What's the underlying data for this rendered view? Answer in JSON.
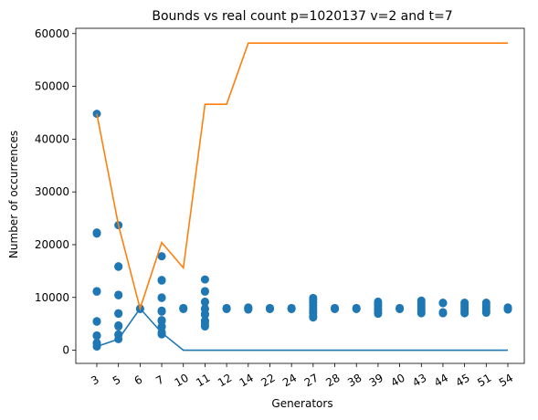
{
  "chart_data": {
    "type": "scatter",
    "title": "Bounds vs real count p=1020137 v=2 and t=7",
    "xlabel": "Generators",
    "ylabel": "Number of occurrences",
    "categories": [
      "3",
      "5",
      "6",
      "7",
      "10",
      "11",
      "12",
      "14",
      "22",
      "24",
      "27",
      "28",
      "38",
      "39",
      "40",
      "43",
      "44",
      "45",
      "51",
      "54"
    ],
    "ylim": [
      -2500,
      61000
    ],
    "yticks": [
      0,
      10000,
      20000,
      30000,
      40000,
      50000,
      60000
    ],
    "grid": false,
    "colors": {
      "scatter": "#1f77b4",
      "lower": "#1f77b4",
      "upper": "#ff7f0e"
    },
    "series": [
      {
        "kind": "scatter",
        "points": {
          "3": [
            44800,
            22300,
            22100,
            11200,
            11100,
            5500,
            5400,
            2800,
            2700,
            1400,
            1300,
            700
          ],
          "5": [
            23700,
            15900,
            15800,
            10500,
            10400,
            7000,
            6900,
            4700,
            4500,
            3000,
            2900,
            2100
          ],
          "6": [
            7900,
            7800
          ],
          "7": [
            17800,
            13300,
            13200,
            10000,
            9900,
            7500,
            7300,
            5700,
            5500,
            4500,
            4400,
            3400,
            3300,
            3000
          ],
          "10": [
            8000,
            7900,
            7800
          ],
          "11": [
            13400,
            11200,
            11100,
            9200,
            9100,
            7900,
            7800,
            6900,
            6700,
            5600,
            5500,
            5000,
            4500
          ],
          "12": [
            8000,
            7900,
            7800
          ],
          "14": [
            8100,
            8000,
            7900,
            7800,
            7700
          ],
          "22": [
            8000,
            7900,
            7800
          ],
          "24": [
            8000,
            7900,
            7800
          ],
          "27": [
            9900,
            9500,
            9000,
            8500,
            8000,
            7500,
            7000,
            6500,
            6200
          ],
          "28": [
            8000,
            7900,
            7800
          ],
          "38": [
            8000,
            7900,
            7800
          ],
          "39": [
            9200,
            8800,
            8400,
            8000,
            7600,
            7200,
            6900
          ],
          "40": [
            8000,
            7900,
            7800
          ],
          "43": [
            9400,
            9000,
            8600,
            8200,
            7800,
            7400,
            7000
          ],
          "44": [
            9000,
            8900,
            7200,
            7000
          ],
          "45": [
            9000,
            8600,
            8200,
            7800,
            7400,
            7000
          ],
          "51": [
            9000,
            8600,
            8200,
            7800,
            7400,
            7100
          ],
          "54": [
            8100,
            8000,
            7900,
            7800,
            7700
          ]
        }
      },
      {
        "kind": "line",
        "role": "lower",
        "values": [
          700,
          2100,
          7900,
          3300,
          0,
          0,
          0,
          0,
          0,
          0,
          0,
          0,
          0,
          0,
          0,
          0,
          0,
          0,
          0,
          0
        ]
      },
      {
        "kind": "line",
        "role": "upper",
        "values": [
          44800,
          23700,
          7900,
          20400,
          15600,
          46600,
          46600,
          58200,
          58200,
          58200,
          58200,
          58200,
          58200,
          58200,
          58200,
          58200,
          58200,
          58200,
          58200,
          58200
        ]
      }
    ]
  }
}
